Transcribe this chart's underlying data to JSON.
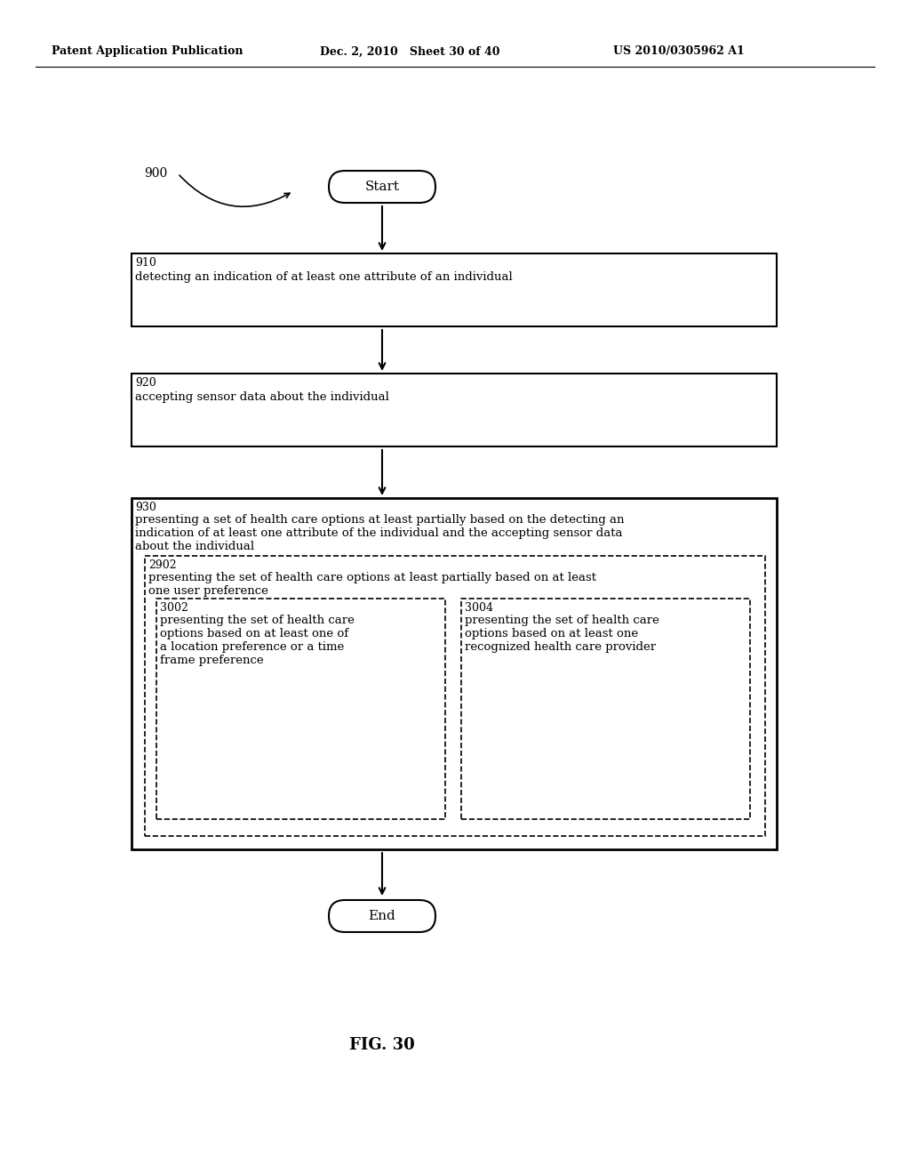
{
  "bg_color": "#ffffff",
  "header_left": "Patent Application Publication",
  "header_mid": "Dec. 2, 2010   Sheet 30 of 40",
  "header_right": "US 2010/0305962 A1",
  "figure_label": "FIG. 30",
  "diagram_label": "900",
  "start_text": "Start",
  "end_text": "End",
  "box910_label": "910",
  "box910_text": "detecting an indication of at least one attribute of an individual",
  "box920_label": "920",
  "box920_text": "accepting sensor data about the individual",
  "box930_label": "930",
  "box930_text1": "presenting a set of health care options at least partially based on the detecting an",
  "box930_text2": "indication of at least one attribute of the individual and the accepting sensor data",
  "box930_text3": "about the individual",
  "box2902_label": "2902",
  "box2902_text1": "presenting the set of health care options at least partially based on at least",
  "box2902_text2": "one user preference",
  "box3002_label": "3002",
  "box3002_text1": "presenting the set of health care",
  "box3002_text2": "options based on at least one of",
  "box3002_text3": "a location preference or a time",
  "box3002_text4": "frame preference",
  "box3004_label": "3004",
  "box3004_text1": "presenting the set of health care",
  "box3004_text2": "options based on at least one",
  "box3004_text3": "recognized health care provider"
}
